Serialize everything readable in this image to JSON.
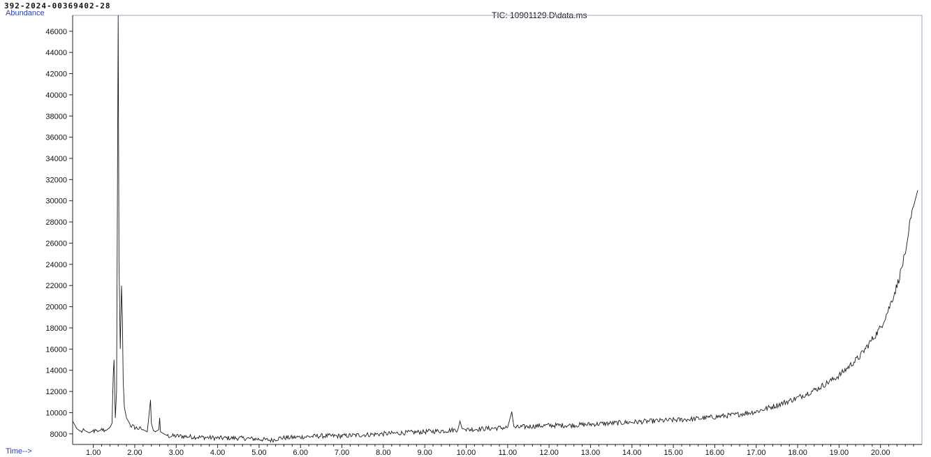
{
  "header": {
    "sample_id": "392-2024-00369402-28"
  },
  "chart_data": {
    "type": "line",
    "title": "TIC: 10901129.D\\data.ms",
    "ylabel": "Abundance",
    "xlabel": "Time-->",
    "xlim": [
      0.5,
      21.0
    ],
    "ylim": [
      7000,
      47500
    ],
    "x_ticks": [
      "1.00",
      "2.00",
      "3.00",
      "4.00",
      "5.00",
      "6.00",
      "7.00",
      "8.00",
      "9.00",
      "10.00",
      "11.00",
      "12.00",
      "13.00",
      "14.00",
      "15.00",
      "16.00",
      "17.00",
      "18.00",
      "19.00",
      "20.00"
    ],
    "y_ticks": [
      "8000",
      "10000",
      "12000",
      "14000",
      "16000",
      "18000",
      "20000",
      "22000",
      "24000",
      "26000",
      "28000",
      "30000",
      "32000",
      "34000",
      "36000",
      "38000",
      "40000",
      "42000",
      "44000",
      "46000"
    ],
    "grid": false,
    "line_color": "#1a1a1a",
    "series": [
      {
        "x": [
          0.5,
          0.6,
          0.7,
          0.8,
          0.9,
          1.0,
          1.1,
          1.2,
          1.3,
          1.4,
          1.45,
          1.48,
          1.5,
          1.53,
          1.56,
          1.58,
          1.6,
          1.62,
          1.65,
          1.68,
          1.7,
          1.72,
          1.75,
          1.8,
          1.9,
          2.0,
          2.1,
          2.2,
          2.3,
          2.35,
          2.38,
          2.4,
          2.45,
          2.5,
          2.58,
          2.6,
          2.62,
          2.7,
          2.8,
          3.0,
          3.5,
          4.0,
          4.5,
          5.0,
          5.3,
          5.5,
          6.0,
          6.5,
          7.0,
          7.5,
          8.0,
          8.5,
          9.0,
          9.5,
          9.8,
          9.85,
          9.9,
          10.0,
          10.5,
          11.0,
          11.1,
          11.15,
          11.2,
          11.5,
          12.0,
          12.5,
          13.0,
          13.5,
          14.0,
          14.5,
          15.0,
          15.5,
          16.0,
          16.5,
          17.0,
          17.5,
          18.0,
          18.5,
          19.0,
          19.5,
          20.0,
          20.2,
          20.4,
          20.6,
          20.7,
          20.8,
          20.9
        ],
        "y": [
          9200,
          8500,
          8200,
          8300,
          8100,
          8300,
          8200,
          8400,
          8300,
          8600,
          9000,
          13500,
          15000,
          9500,
          12000,
          30000,
          47500,
          24000,
          16000,
          22000,
          19000,
          13000,
          10500,
          9500,
          8800,
          8600,
          8500,
          8400,
          8200,
          10000,
          11200,
          9000,
          8300,
          8200,
          8400,
          9500,
          8200,
          8000,
          7800,
          7800,
          7700,
          7600,
          7600,
          7500,
          7400,
          7600,
          7700,
          7800,
          7800,
          7900,
          8000,
          8100,
          8200,
          8300,
          8400,
          9200,
          8500,
          8400,
          8500,
          8600,
          10100,
          8700,
          8600,
          8700,
          8800,
          8800,
          8900,
          9000,
          9100,
          9200,
          9300,
          9400,
          9600,
          9800,
          10100,
          10700,
          11400,
          12300,
          13500,
          15300,
          18000,
          19800,
          22000,
          25000,
          27500,
          29500,
          31000
        ]
      }
    ]
  }
}
